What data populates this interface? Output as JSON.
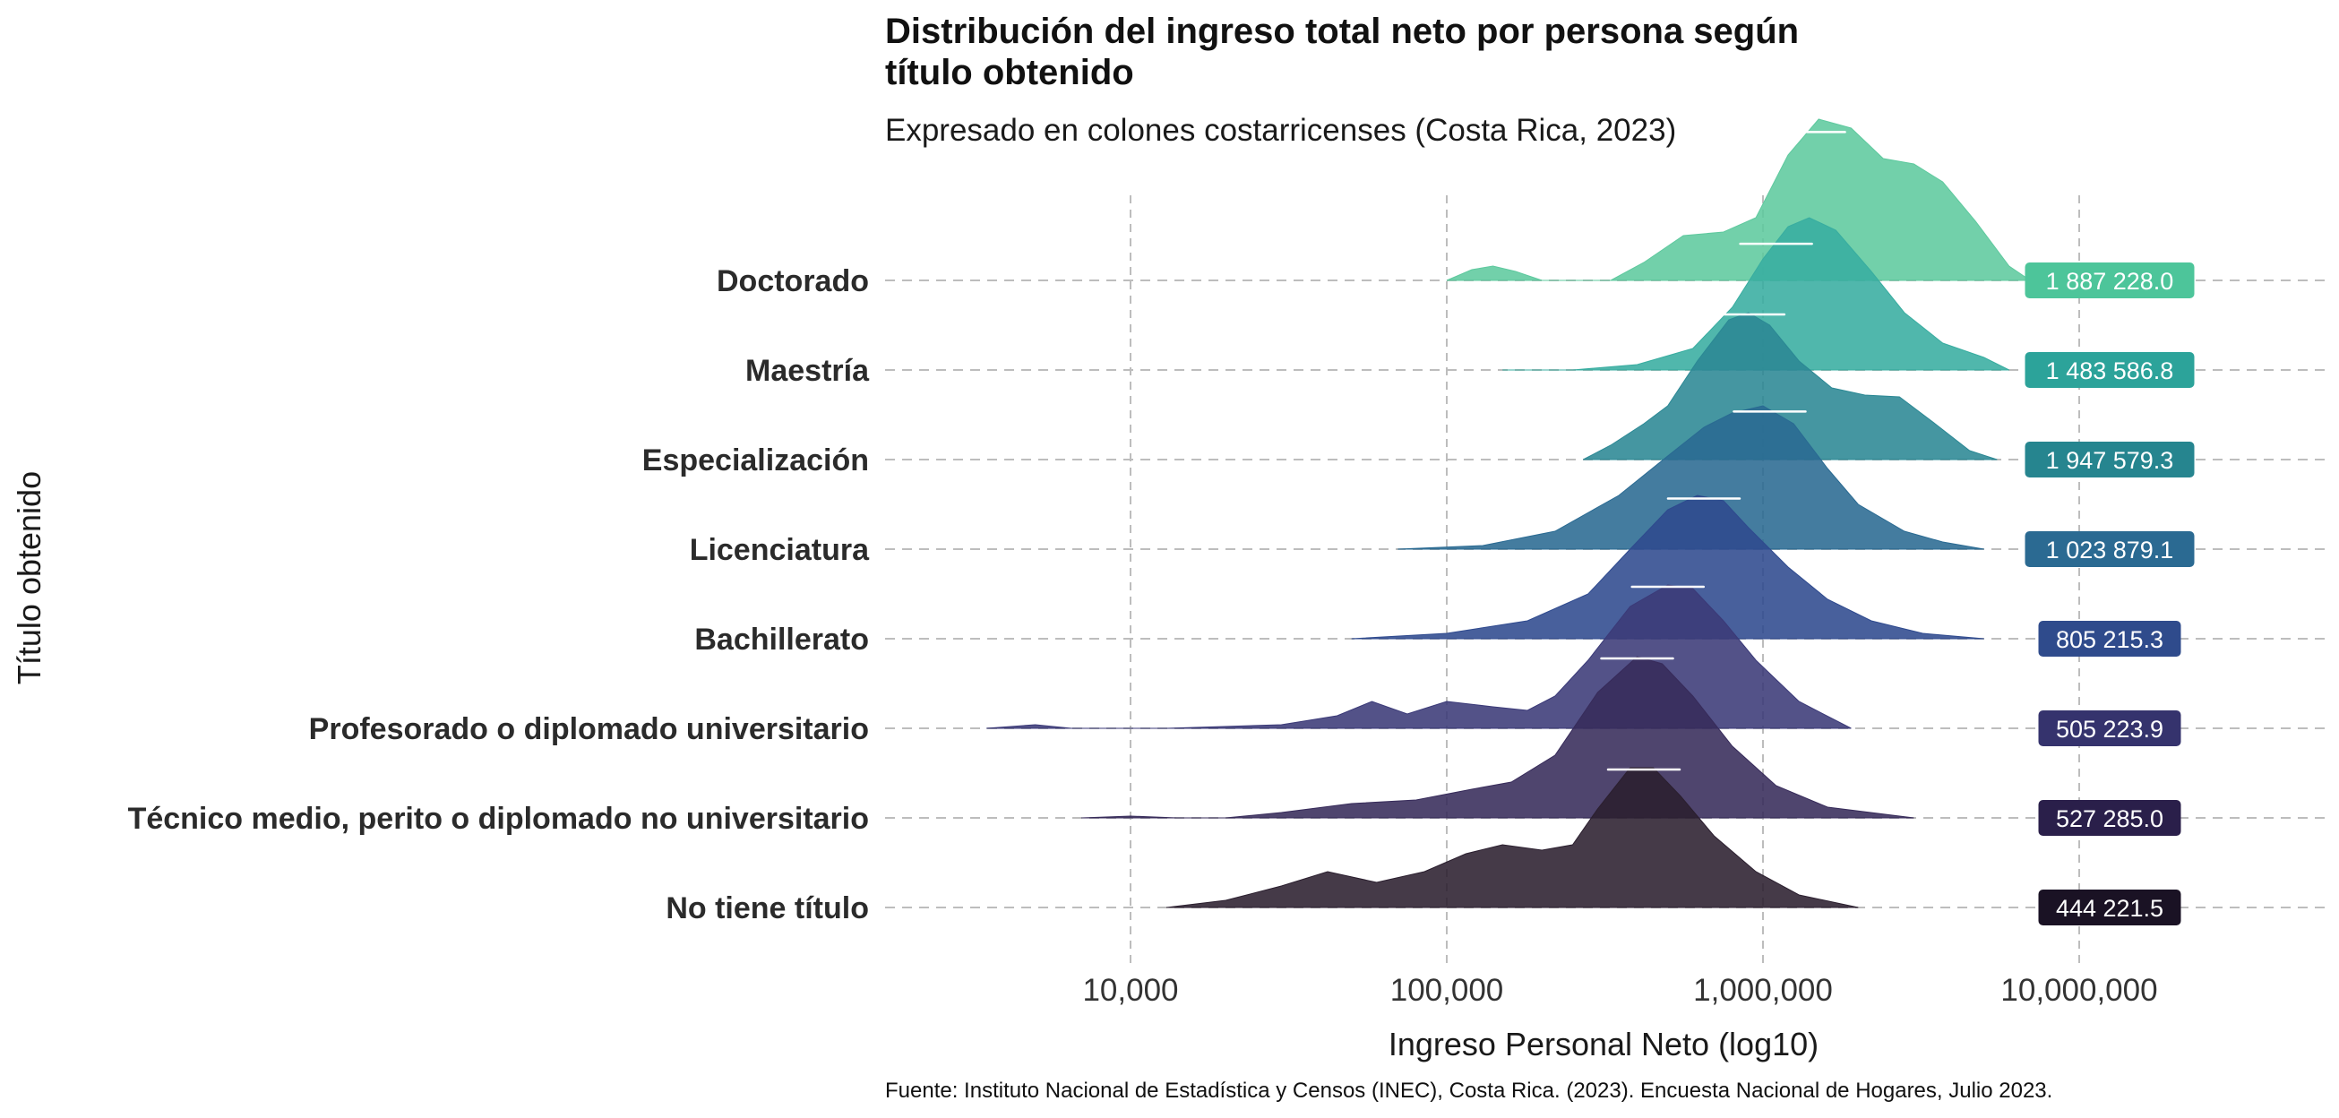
{
  "chart_data": {
    "type": "ridgeline",
    "title_line1": "Distribución del ingreso total neto por persona según",
    "title_line2": "título obtenido",
    "subtitle": "Expresado en colones costarricenses (Costa Rica, 2023)",
    "xlabel": "Ingreso Personal Neto (log10)",
    "ylabel": "Título obtenido",
    "caption": "Fuente: Instituto Nacional de Estadística y Censos (INEC), Costa Rica. (2023). Encuesta Nacional de Hogares, Julio 2023.",
    "x_scale": "log10",
    "xlim": [
      1000,
      50000000
    ],
    "x_ticks": [
      10000,
      100000,
      1000000,
      10000000
    ],
    "x_tick_labels": [
      "10,000",
      "100,000",
      "1,000,000",
      "10,000,000"
    ],
    "grid": "dashed",
    "categories": [
      {
        "label": "Doctorado",
        "color": "#5ec99e",
        "mean_label": "1 887 228.0",
        "label_color": "#4dc59a",
        "median": 1400000,
        "density": [
          [
            100000,
            0.0
          ],
          [
            120000,
            0.06
          ],
          [
            140000,
            0.08
          ],
          [
            165000,
            0.05
          ],
          [
            200000,
            0.0
          ],
          [
            330000,
            0.0
          ],
          [
            420000,
            0.1
          ],
          [
            560000,
            0.25
          ],
          [
            750000,
            0.27
          ],
          [
            950000,
            0.35
          ],
          [
            1200000,
            0.7
          ],
          [
            1500000,
            0.9
          ],
          [
            1900000,
            0.85
          ],
          [
            2400000,
            0.68
          ],
          [
            3000000,
            0.65
          ],
          [
            3700000,
            0.55
          ],
          [
            4700000,
            0.33
          ],
          [
            6000000,
            0.08
          ],
          [
            7000000,
            0.0
          ]
        ]
      },
      {
        "label": "Maestría",
        "color": "#38ada0",
        "mean_label": "1 483 586.8",
        "label_color": "#2ca39a",
        "median": 1100000,
        "density": [
          [
            150000,
            0.0
          ],
          [
            250000,
            0.0
          ],
          [
            400000,
            0.03
          ],
          [
            600000,
            0.12
          ],
          [
            800000,
            0.35
          ],
          [
            1000000,
            0.62
          ],
          [
            1200000,
            0.8
          ],
          [
            1400000,
            0.85
          ],
          [
            1700000,
            0.78
          ],
          [
            2200000,
            0.55
          ],
          [
            2800000,
            0.32
          ],
          [
            3700000,
            0.15
          ],
          [
            5000000,
            0.07
          ],
          [
            6000000,
            0.0
          ]
        ]
      },
      {
        "label": "Especialización",
        "color": "#2b8894",
        "mean_label": "1 947 579.3",
        "label_color": "#26858f",
        "median": 900000,
        "density": [
          [
            270000,
            0.0
          ],
          [
            330000,
            0.08
          ],
          [
            420000,
            0.2
          ],
          [
            500000,
            0.3
          ],
          [
            620000,
            0.55
          ],
          [
            780000,
            0.78
          ],
          [
            900000,
            0.82
          ],
          [
            1050000,
            0.75
          ],
          [
            1300000,
            0.55
          ],
          [
            1650000,
            0.4
          ],
          [
            2100000,
            0.36
          ],
          [
            2700000,
            0.35
          ],
          [
            3500000,
            0.2
          ],
          [
            4500000,
            0.05
          ],
          [
            5500000,
            0.0
          ]
        ]
      },
      {
        "label": "Licenciatura",
        "color": "#2a6a92",
        "mean_label": "1 023 879.1",
        "label_color": "#2b6a92",
        "median": 1050000,
        "density": [
          [
            70000,
            0.0
          ],
          [
            130000,
            0.02
          ],
          [
            220000,
            0.1
          ],
          [
            350000,
            0.3
          ],
          [
            500000,
            0.52
          ],
          [
            650000,
            0.68
          ],
          [
            800000,
            0.76
          ],
          [
            1000000,
            0.8
          ],
          [
            1250000,
            0.7
          ],
          [
            1600000,
            0.45
          ],
          [
            2000000,
            0.25
          ],
          [
            2800000,
            0.1
          ],
          [
            3700000,
            0.04
          ],
          [
            5000000,
            0.0
          ]
        ]
      },
      {
        "label": "Bachillerato",
        "color": "#2f4a8e",
        "mean_label": "805 215.3",
        "label_color": "#2f4b8c",
        "median": 650000,
        "density": [
          [
            50000,
            0.0
          ],
          [
            100000,
            0.03
          ],
          [
            180000,
            0.1
          ],
          [
            280000,
            0.25
          ],
          [
            380000,
            0.5
          ],
          [
            500000,
            0.72
          ],
          [
            620000,
            0.8
          ],
          [
            750000,
            0.77
          ],
          [
            900000,
            0.62
          ],
          [
            1200000,
            0.4
          ],
          [
            1600000,
            0.22
          ],
          [
            2200000,
            0.1
          ],
          [
            3200000,
            0.03
          ],
          [
            5000000,
            0.0
          ]
        ]
      },
      {
        "label": "Profesorado o diplomado universitario",
        "color": "#3b3a78",
        "mean_label": "505 223.9",
        "label_color": "#35336d",
        "median": 500000,
        "density": [
          [
            3500,
            0.0
          ],
          [
            5000,
            0.02
          ],
          [
            6500,
            0.0
          ],
          [
            13000,
            0.0
          ],
          [
            30000,
            0.02
          ],
          [
            45000,
            0.07
          ],
          [
            58000,
            0.15
          ],
          [
            75000,
            0.08
          ],
          [
            100000,
            0.15
          ],
          [
            140000,
            0.12
          ],
          [
            180000,
            0.1
          ],
          [
            220000,
            0.18
          ],
          [
            280000,
            0.38
          ],
          [
            380000,
            0.68
          ],
          [
            500000,
            0.8
          ],
          [
            600000,
            0.78
          ],
          [
            750000,
            0.6
          ],
          [
            950000,
            0.38
          ],
          [
            1300000,
            0.15
          ],
          [
            1900000,
            0.0
          ]
        ]
      },
      {
        "label": "Técnico medio, perito o diplomado no universitario",
        "color": "#372b5a",
        "mean_label": "527 285.0",
        "label_color": "#2a1f4a",
        "median": 400000,
        "density": [
          [
            7000,
            0.0
          ],
          [
            10000,
            0.01
          ],
          [
            14000,
            0.0
          ],
          [
            20000,
            0.0
          ],
          [
            30000,
            0.03
          ],
          [
            50000,
            0.08
          ],
          [
            80000,
            0.1
          ],
          [
            120000,
            0.16
          ],
          [
            160000,
            0.2
          ],
          [
            220000,
            0.35
          ],
          [
            300000,
            0.7
          ],
          [
            400000,
            0.9
          ],
          [
            480000,
            0.86
          ],
          [
            600000,
            0.68
          ],
          [
            800000,
            0.4
          ],
          [
            1100000,
            0.18
          ],
          [
            1600000,
            0.06
          ],
          [
            3000000,
            0.0
          ]
        ]
      },
      {
        "label": "No tiene título",
        "color": "#2b1f2f",
        "mean_label": "444 221.5",
        "label_color": "#1a1224",
        "median": 420000,
        "density": [
          [
            13000,
            0.0
          ],
          [
            20000,
            0.04
          ],
          [
            30000,
            0.12
          ],
          [
            42000,
            0.2
          ],
          [
            60000,
            0.14
          ],
          [
            85000,
            0.2
          ],
          [
            115000,
            0.3
          ],
          [
            150000,
            0.35
          ],
          [
            200000,
            0.32
          ],
          [
            250000,
            0.35
          ],
          [
            300000,
            0.55
          ],
          [
            380000,
            0.78
          ],
          [
            450000,
            0.78
          ],
          [
            550000,
            0.62
          ],
          [
            700000,
            0.4
          ],
          [
            950000,
            0.2
          ],
          [
            1300000,
            0.07
          ],
          [
            2000000,
            0.0
          ]
        ]
      }
    ]
  }
}
